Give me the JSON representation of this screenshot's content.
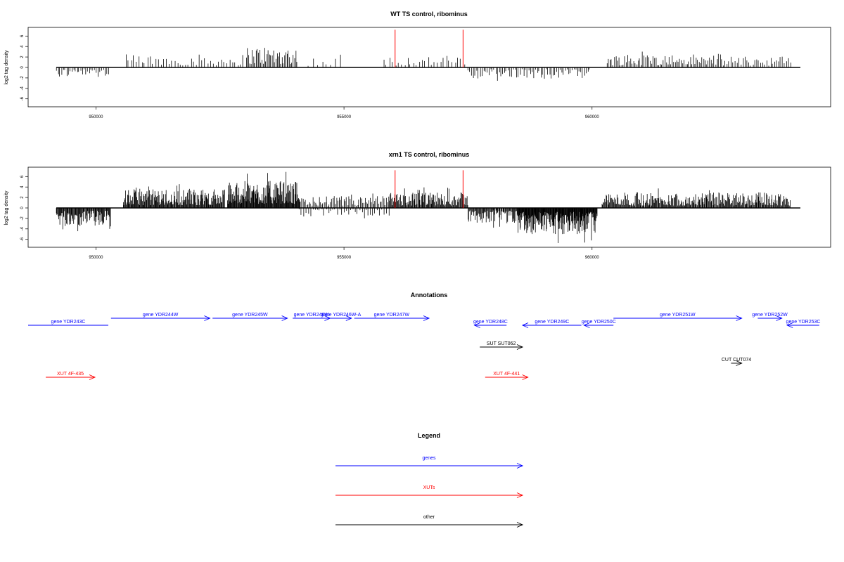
{
  "chart_data": [
    {
      "type": "bar",
      "title": "WT TS control, ribominus",
      "ylabel": "log2 tag density",
      "xlim": [
        949200,
        964200
      ],
      "ylim": [
        -7,
        8
      ],
      "yticks": [
        6,
        4,
        2,
        0,
        -2,
        -4,
        -6
      ],
      "xticks": [
        950000,
        955000,
        960000
      ],
      "baseline_range": [
        949200,
        964200
      ],
      "markers": [
        956030,
        957400
      ],
      "marker_color": "#ff0000",
      "segments": [
        {
          "start": 949200,
          "end": 950250,
          "sign": -1,
          "amp": 2.0,
          "step": 35
        },
        {
          "start": 950600,
          "end": 953050,
          "sign": 1,
          "amp": 2.5,
          "step": 55
        },
        {
          "start": 953050,
          "end": 954050,
          "sign": 1,
          "amp": 4.2,
          "step": 25
        },
        {
          "start": 954300,
          "end": 955000,
          "sign": 1,
          "amp": 2.0,
          "step": 90
        },
        {
          "start": 955800,
          "end": 957450,
          "sign": 1,
          "amp": 2.3,
          "step": 60
        },
        {
          "start": 957500,
          "end": 959950,
          "sign": -1,
          "amp": 2.2,
          "step": 35
        },
        {
          "start": 960300,
          "end": 962600,
          "sign": 1,
          "amp": 2.6,
          "step": 30
        },
        {
          "start": 962600,
          "end": 964000,
          "sign": 1,
          "amp": 2.2,
          "step": 40
        }
      ]
    },
    {
      "type": "bar",
      "title": "xrn1 TS control, ribominus",
      "ylabel": "log2 tag density",
      "xlim": [
        949200,
        964200
      ],
      "ylim": [
        -7,
        8
      ],
      "yticks": [
        6,
        4,
        2,
        0,
        -2,
        -4,
        -6
      ],
      "xticks": [
        950000,
        955000,
        960000
      ],
      "baseline_range": [
        949200,
        964200
      ],
      "markers": [
        956030,
        957400
      ],
      "marker_color": "#ff0000",
      "segments": [
        {
          "start": 949200,
          "end": 950300,
          "sign": -1,
          "amp": 3.6,
          "step": 12
        },
        {
          "start": 950550,
          "end": 952600,
          "sign": 1,
          "amp": 3.6,
          "step": 12
        },
        {
          "start": 952650,
          "end": 954100,
          "sign": 1,
          "amp": 5.2,
          "step": 10
        },
        {
          "start": 954100,
          "end": 955900,
          "sign": -1,
          "amp": 1.5,
          "step": 45
        },
        {
          "start": 954100,
          "end": 955900,
          "sign": 1,
          "amp": 2.3,
          "step": 25
        },
        {
          "start": 955900,
          "end": 957500,
          "sign": 1,
          "amp": 3.0,
          "step": 14
        },
        {
          "start": 957500,
          "end": 958500,
          "sign": -1,
          "amp": 3.0,
          "step": 14
        },
        {
          "start": 958500,
          "end": 960100,
          "sign": -1,
          "amp": 5.0,
          "step": 8
        },
        {
          "start": 960200,
          "end": 964000,
          "sign": 1,
          "amp": 3.0,
          "step": 14
        }
      ]
    }
  ],
  "annotations": {
    "title": "Annotations",
    "xlim": [
      949200,
      964200
    ],
    "features": [
      {
        "label": "gene YDR243C",
        "start": 949200,
        "end": 950700,
        "strand": "-",
        "row": 0,
        "color": "#0000ff"
      },
      {
        "label": "gene YDR244W",
        "start": 950750,
        "end": 952600,
        "strand": "+",
        "row": 1,
        "color": "#0000ff"
      },
      {
        "label": "gene YDR245W",
        "start": 952650,
        "end": 954050,
        "strand": "+",
        "row": 1,
        "color": "#0000ff"
      },
      {
        "label": "gene YDR246W",
        "start": 954150,
        "end": 954850,
        "strand": "+",
        "row": 1,
        "color": "#0000ff"
      },
      {
        "label": "gene YDR246W-A",
        "start": 954850,
        "end": 955250,
        "strand": "+",
        "row": 1,
        "color": "#0000ff"
      },
      {
        "label": "gene YDR247W",
        "start": 955300,
        "end": 956700,
        "strand": "+",
        "row": 1,
        "color": "#0000ff"
      },
      {
        "label": "gene YDR248C",
        "start": 957550,
        "end": 958150,
        "strand": "-",
        "row": 0,
        "color": "#0000ff"
      },
      {
        "label": "gene YDR249C",
        "start": 958450,
        "end": 959550,
        "strand": "-",
        "row": 0,
        "color": "#0000ff"
      },
      {
        "label": "gene YDR250C",
        "start": 959600,
        "end": 960150,
        "strand": "-",
        "row": 0,
        "color": "#0000ff"
      },
      {
        "label": "gene YDR251W",
        "start": 960150,
        "end": 962550,
        "strand": "+",
        "row": 1,
        "color": "#0000ff"
      },
      {
        "label": "gene YDR252W",
        "start": 962850,
        "end": 963300,
        "strand": "+",
        "row": 1,
        "color": "#0000ff"
      },
      {
        "label": "gene YDR253C",
        "start": 963400,
        "end": 964000,
        "strand": "-",
        "row": 0,
        "color": "#0000ff"
      },
      {
        "label": "SUT SUT062",
        "start": 957650,
        "end": 958450,
        "strand": "+",
        "row": 2,
        "color": "#000000"
      },
      {
        "label": "CUT CUT074",
        "start": 962350,
        "end": 962550,
        "strand": "+",
        "row": 3,
        "color": "#000000"
      },
      {
        "label": "XUT 4F-435",
        "start": 949530,
        "end": 950450,
        "strand": "+",
        "row": 4,
        "color": "#ff0000"
      },
      {
        "label": "XUT 4F-441",
        "start": 957750,
        "end": 958550,
        "strand": "+",
        "row": 4,
        "color": "#ff0000"
      }
    ]
  },
  "legend": {
    "title": "Legend",
    "items": [
      {
        "label": "genes",
        "color": "#0000ff"
      },
      {
        "label": "XUTs",
        "color": "#ff0000"
      },
      {
        "label": "other",
        "color": "#000000"
      }
    ]
  }
}
